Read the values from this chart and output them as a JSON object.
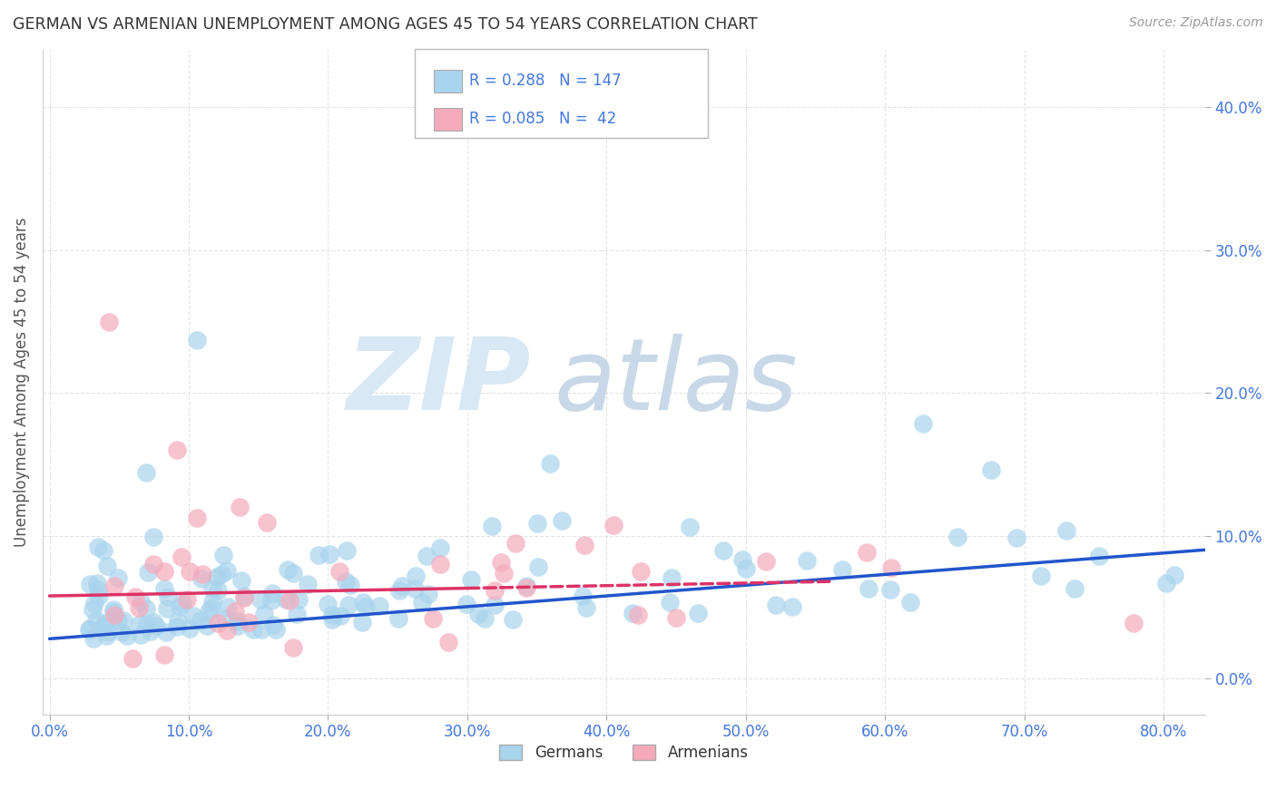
{
  "title": "GERMAN VS ARMENIAN UNEMPLOYMENT AMONG AGES 45 TO 54 YEARS CORRELATION CHART",
  "source": "Source: ZipAtlas.com",
  "ylabel": "Unemployment Among Ages 45 to 54 years",
  "xlim": [
    -0.005,
    0.83
  ],
  "ylim": [
    -0.025,
    0.44
  ],
  "xticks": [
    0.0,
    0.1,
    0.2,
    0.3,
    0.4,
    0.5,
    0.6,
    0.7,
    0.8
  ],
  "yticks": [
    0.0,
    0.1,
    0.2,
    0.3,
    0.4
  ],
  "german_R": 0.288,
  "german_N": 147,
  "armenian_R": 0.085,
  "armenian_N": 42,
  "german_color": "#A8D4ED",
  "armenian_color": "#F4AABB",
  "german_line_color": "#2255CC",
  "armenian_line_color": "#DD3366",
  "background_color": "#FFFFFF",
  "legend_text_color": "#4477DD",
  "title_color": "#333333",
  "source_color": "#999999",
  "tick_color": "#4477DD",
  "grid_color": "#DDDDDD",
  "watermark_zip_color": "#D8E8F5",
  "watermark_atlas_color": "#C8D8E8",
  "german_slope": 0.075,
  "german_intercept": 0.028,
  "armenian_slope": 0.018,
  "armenian_intercept": 0.058
}
